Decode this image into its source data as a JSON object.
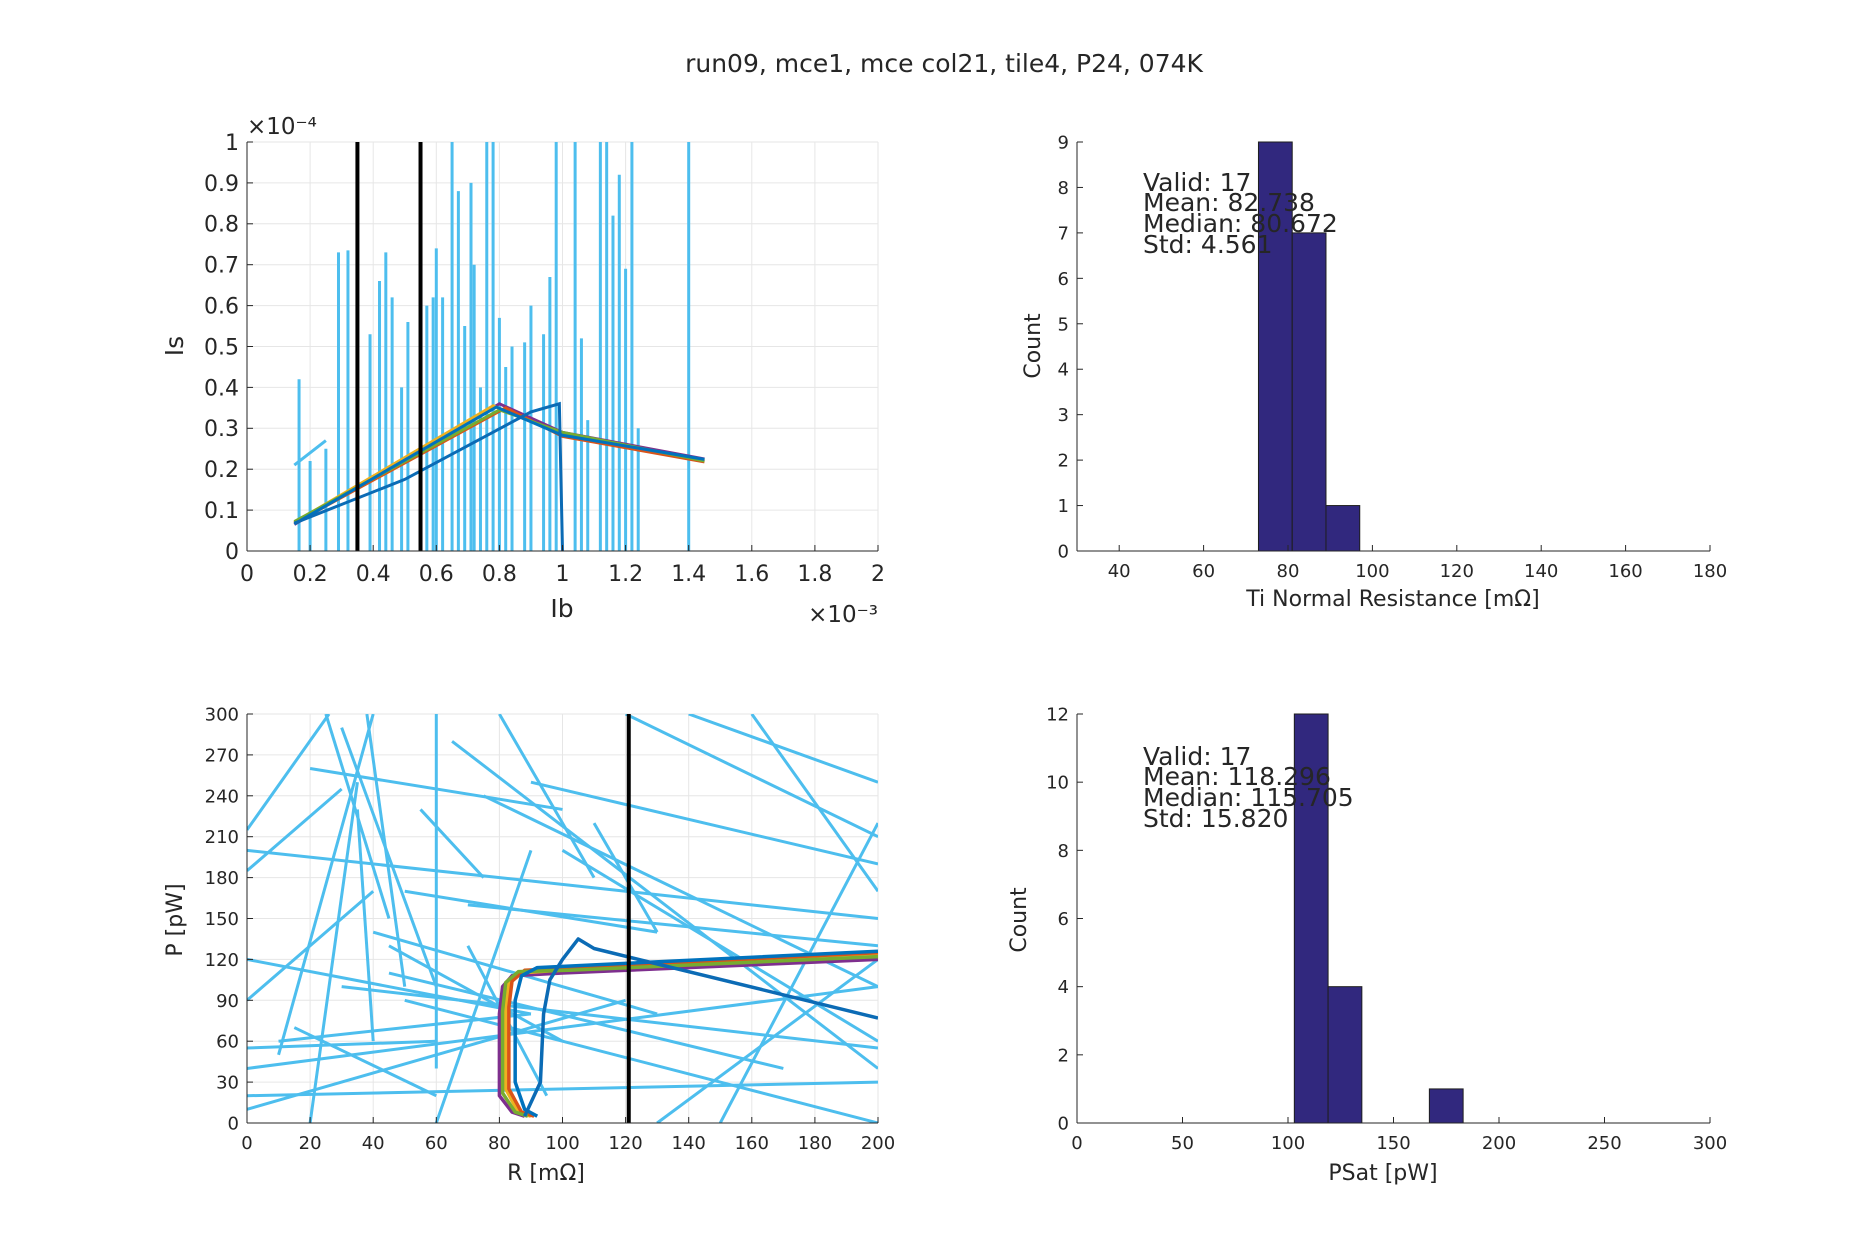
{
  "figure": {
    "title": "run09, mce1, mce col21, tile4, P24, 074K"
  },
  "colors": {
    "axis": "#262626",
    "grid": "#e6e6e6",
    "vline": "#000000",
    "bar_fill": "#31287e",
    "bar_edge": "#1e1e1e",
    "noise": "#4dbeee",
    "curves": [
      "#7e2f8e",
      "#edb120",
      "#d95319",
      "#77ac30",
      "#0072bd",
      "#0b6bb5"
    ]
  },
  "chart_data": [
    {
      "type": "line",
      "panel": "iv",
      "title": "",
      "xlabel": "Ib",
      "ylabel": "Is",
      "x_exponent": "×10⁻³",
      "y_exponent": "×10⁻⁴",
      "xlim": [
        0,
        2
      ],
      "ylim": [
        0,
        1
      ],
      "xticks": [
        0,
        0.2,
        0.4,
        0.6,
        0.8,
        1,
        1.2,
        1.4,
        1.6,
        1.8,
        2
      ],
      "xtick_labels": [
        "0",
        "0.2",
        "0.4",
        "0.6",
        "0.8",
        "1",
        "1.2",
        "1.4",
        "1.6",
        "1.8",
        "2"
      ],
      "yticks": [
        0,
        0.1,
        0.2,
        0.3,
        0.4,
        0.5,
        0.6,
        0.7,
        0.8,
        0.9,
        1
      ],
      "ytick_labels": [
        "0",
        "0.1",
        "0.2",
        "0.3",
        "0.4",
        "0.5",
        "0.6",
        "0.7",
        "0.8",
        "0.9",
        "1"
      ],
      "grid": true,
      "vlines": [
        0.35,
        0.55
      ],
      "curves": [
        {
          "points": [
            [
              0.15,
              0.065
            ],
            [
              0.8,
              0.36
            ],
            [
              1.0,
              0.29
            ],
            [
              1.45,
              0.225
            ]
          ]
        },
        {
          "points": [
            [
              0.15,
              0.07
            ],
            [
              0.78,
              0.355
            ],
            [
              1.0,
              0.285
            ],
            [
              1.45,
              0.222
            ]
          ]
        },
        {
          "points": [
            [
              0.15,
              0.068
            ],
            [
              0.82,
              0.35
            ],
            [
              1.0,
              0.28
            ],
            [
              1.45,
              0.218
            ]
          ]
        },
        {
          "points": [
            [
              0.15,
              0.072
            ],
            [
              0.8,
              0.345
            ],
            [
              1.0,
              0.29
            ],
            [
              1.45,
              0.22
            ]
          ]
        },
        {
          "points": [
            [
              0.15,
              0.066
            ],
            [
              0.79,
              0.352
            ],
            [
              1.0,
              0.283
            ],
            [
              1.45,
              0.224
            ]
          ]
        },
        {
          "points": [
            [
              0.15,
              0.068
            ],
            [
              0.5,
              0.175
            ],
            [
              0.9,
              0.34
            ],
            [
              0.99,
              0.36
            ],
            [
              1.0,
              0.0
            ]
          ]
        }
      ],
      "noise_spikes": [
        [
          0.165,
          0.42
        ],
        [
          0.2,
          0.22
        ],
        [
          0.25,
          0.25
        ],
        [
          0.29,
          0.73
        ],
        [
          0.32,
          0.735
        ],
        [
          0.35,
          0.68
        ],
        [
          0.39,
          0.53
        ],
        [
          0.42,
          0.66
        ],
        [
          0.44,
          0.73
        ],
        [
          0.46,
          0.62
        ],
        [
          0.49,
          0.4
        ],
        [
          0.51,
          0.56
        ],
        [
          0.55,
          0.7
        ],
        [
          0.57,
          0.6
        ],
        [
          0.59,
          0.62
        ],
        [
          0.6,
          0.74
        ],
        [
          0.62,
          0.62
        ],
        [
          0.65,
          1.0
        ],
        [
          0.67,
          0.88
        ],
        [
          0.69,
          0.55
        ],
        [
          0.71,
          0.9
        ],
        [
          0.72,
          0.7
        ],
        [
          0.74,
          0.4
        ],
        [
          0.76,
          1.0
        ],
        [
          0.78,
          1.0
        ],
        [
          0.8,
          0.57
        ],
        [
          0.82,
          0.45
        ],
        [
          0.84,
          0.5
        ],
        [
          0.88,
          0.51
        ],
        [
          0.9,
          0.6
        ],
        [
          0.94,
          0.53
        ],
        [
          0.96,
          0.67
        ],
        [
          0.98,
          1.0
        ],
        [
          1.04,
          1.0
        ],
        [
          1.06,
          0.52
        ],
        [
          1.08,
          0.32
        ],
        [
          1.12,
          1.0
        ],
        [
          1.14,
          1.0
        ],
        [
          1.16,
          0.82
        ],
        [
          1.18,
          0.92
        ],
        [
          1.2,
          0.69
        ],
        [
          1.22,
          1.0
        ],
        [
          1.24,
          0.3
        ],
        [
          1.4,
          1.0
        ]
      ],
      "noise_tail": [
        [
          0.15,
          0.21
        ],
        [
          0.25,
          0.27
        ]
      ]
    },
    {
      "type": "bar",
      "panel": "rn_hist",
      "title": "",
      "xlabel": "Ti Normal Resistance [mΩ]",
      "ylabel": "Count",
      "xlim": [
        30,
        180
      ],
      "ylim": [
        0,
        9
      ],
      "xticks": [
        40,
        60,
        80,
        100,
        120,
        140,
        160,
        180
      ],
      "yticks": [
        0,
        1,
        2,
        3,
        4,
        5,
        6,
        7,
        8,
        9
      ],
      "bin_edges": [
        73,
        81,
        89,
        97
      ],
      "values": [
        9,
        7,
        1
      ],
      "stats": {
        "valid": "Valid: 17",
        "mean": "Mean: 82.738",
        "median": "Median: 80.672",
        "std": "Std: 4.561"
      }
    },
    {
      "type": "line",
      "panel": "pr",
      "title": "",
      "xlabel": "R [mΩ]",
      "ylabel": "P [pW]",
      "xlim": [
        0,
        200
      ],
      "ylim": [
        0,
        300
      ],
      "xticks": [
        0,
        20,
        40,
        60,
        80,
        100,
        120,
        140,
        160,
        180,
        200
      ],
      "yticks": [
        0,
        30,
        60,
        90,
        120,
        150,
        180,
        210,
        240,
        270,
        300
      ],
      "grid": true,
      "vlines": [
        121
      ],
      "curves": [
        {
          "points": [
            [
              88,
              5
            ],
            [
              84,
              8
            ],
            [
              80,
              20
            ],
            [
              80,
              80
            ],
            [
              81,
              100
            ],
            [
              84,
              108
            ],
            [
              100,
              110
            ],
            [
              200,
              120
            ]
          ]
        },
        {
          "points": [
            [
              90,
              5
            ],
            [
              86,
              8
            ],
            [
              82,
              25
            ],
            [
              82,
              85
            ],
            [
              83,
              102
            ],
            [
              86,
              110
            ],
            [
              105,
              113
            ],
            [
              200,
              123
            ]
          ]
        },
        {
          "points": [
            [
              91,
              5
            ],
            [
              87,
              8
            ],
            [
              83,
              25
            ],
            [
              83,
              85
            ],
            [
              84,
              104
            ],
            [
              88,
              112
            ],
            [
              105,
              114
            ],
            [
              200,
              125
            ]
          ]
        },
        {
          "points": [
            [
              89,
              5
            ],
            [
              85,
              8
            ],
            [
              81,
              22
            ],
            [
              81,
              82
            ],
            [
              82,
              103
            ],
            [
              86,
              111
            ],
            [
              102,
              112
            ],
            [
              200,
              122
            ]
          ]
        },
        {
          "points": [
            [
              92,
              5
            ],
            [
              88,
              10
            ],
            [
              85,
              30
            ],
            [
              85,
              90
            ],
            [
              87,
              108
            ],
            [
              92,
              114
            ],
            [
              110,
              116
            ],
            [
              200,
              126
            ]
          ]
        },
        {
          "points": [
            [
              88,
              5
            ],
            [
              93,
              30
            ],
            [
              94,
              80
            ],
            [
              96,
              105
            ],
            [
              100,
              120
            ],
            [
              105,
              135
            ],
            [
              110,
              128
            ],
            [
              200,
              77
            ]
          ]
        }
      ],
      "noise_segments": [
        [
          [
            0,
            215
          ],
          [
            26,
            300
          ]
        ],
        [
          [
            0,
            185
          ],
          [
            30,
            245
          ]
        ],
        [
          [
            0,
            90
          ],
          [
            40,
            170
          ]
        ],
        [
          [
            0,
            55
          ],
          [
            60,
            60
          ]
        ],
        [
          [
            0,
            120
          ],
          [
            90,
            80
          ]
        ],
        [
          [
            10,
            50
          ],
          [
            40,
            300
          ]
        ],
        [
          [
            15,
            70
          ],
          [
            60,
            20
          ]
        ],
        [
          [
            20,
            0
          ],
          [
            35,
            250
          ]
        ],
        [
          [
            25,
            300
          ],
          [
            45,
            150
          ]
        ],
        [
          [
            30,
            290
          ],
          [
            60,
            100
          ]
        ],
        [
          [
            35,
            230
          ],
          [
            40,
            60
          ]
        ],
        [
          [
            38,
            300
          ],
          [
            50,
            100
          ]
        ],
        [
          [
            40,
            140
          ],
          [
            130,
            80
          ]
        ],
        [
          [
            45,
            110
          ],
          [
            170,
            40
          ]
        ],
        [
          [
            50,
            90
          ],
          [
            200,
            0
          ]
        ],
        [
          [
            55,
            230
          ],
          [
            75,
            180
          ]
        ],
        [
          [
            60,
            0
          ],
          [
            90,
            200
          ]
        ],
        [
          [
            65,
            280
          ],
          [
            200,
            40
          ]
        ],
        [
          [
            70,
            160
          ],
          [
            200,
            130
          ]
        ],
        [
          [
            75,
            240
          ],
          [
            200,
            100
          ]
        ],
        [
          [
            80,
            300
          ],
          [
            110,
            180
          ]
        ],
        [
          [
            90,
            250
          ],
          [
            200,
            190
          ]
        ],
        [
          [
            100,
            200
          ],
          [
            200,
            60
          ]
        ],
        [
          [
            110,
            220
          ],
          [
            130,
            140
          ]
        ],
        [
          [
            120,
            300
          ],
          [
            200,
            210
          ]
        ],
        [
          [
            130,
            0
          ],
          [
            200,
            120
          ]
        ],
        [
          [
            140,
            300
          ],
          [
            200,
            250
          ]
        ],
        [
          [
            150,
            0
          ],
          [
            200,
            220
          ]
        ],
        [
          [
            160,
            300
          ],
          [
            200,
            170
          ]
        ],
        [
          [
            0,
            40
          ],
          [
            200,
            100
          ]
        ],
        [
          [
            0,
            20
          ],
          [
            200,
            30
          ]
        ],
        [
          [
            0,
            10
          ],
          [
            120,
            90
          ]
        ],
        [
          [
            10,
            60
          ],
          [
            90,
            80
          ]
        ],
        [
          [
            30,
            100
          ],
          [
            200,
            55
          ]
        ],
        [
          [
            50,
            170
          ],
          [
            130,
            140
          ]
        ],
        [
          [
            60,
            40
          ],
          [
            60,
            300
          ]
        ],
        [
          [
            45,
            130
          ],
          [
            100,
            60
          ]
        ],
        [
          [
            0,
            200
          ],
          [
            200,
            150
          ]
        ],
        [
          [
            20,
            260
          ],
          [
            100,
            230
          ]
        ],
        [
          [
            70,
            130
          ],
          [
            95,
            20
          ]
        ]
      ]
    },
    {
      "type": "bar",
      "panel": "psat_hist",
      "title": "",
      "xlabel": "PSat [pW]",
      "ylabel": "Count",
      "xlim": [
        0,
        300
      ],
      "ylim": [
        0,
        12
      ],
      "xticks": [
        0,
        50,
        100,
        150,
        200,
        250,
        300
      ],
      "yticks": [
        0,
        2,
        4,
        6,
        8,
        10,
        12
      ],
      "bin_edges": [
        103,
        119,
        135,
        151,
        167,
        183
      ],
      "values": [
        12,
        4,
        0,
        0,
        1
      ],
      "stats": {
        "valid": "Valid: 17",
        "mean": "Mean: 118.296",
        "median": "Median: 115.705",
        "std": "Std: 15.820"
      }
    }
  ]
}
